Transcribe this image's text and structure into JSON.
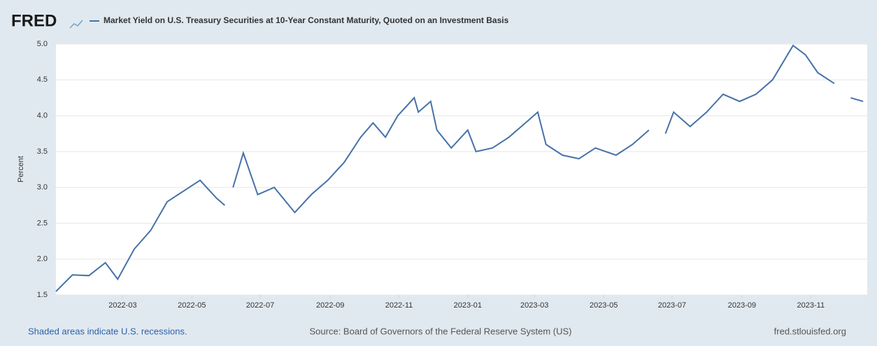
{
  "chart_data": {
    "type": "line",
    "logo": "FRED",
    "title": "Market Yield on U.S. Treasury Securities at 10-Year Constant Maturity, Quoted on an Investment Basis",
    "y_label": "Percent",
    "footer_left": "Shaded areas indicate U.S. recessions.",
    "footer_center": "Source: Board of Governors of the Federal Reserve System (US)",
    "footer_right": "fred.stlouisfed.org",
    "x": [
      2022.0,
      2022.04,
      2022.08,
      2022.12,
      2022.15,
      2022.19,
      2022.23,
      2022.27,
      2022.31,
      2022.35,
      2022.39,
      2022.41,
      2022.42,
      2022.43,
      2022.455,
      2022.49,
      2022.53,
      2022.58,
      2022.62,
      2022.66,
      2022.7,
      2022.74,
      2022.77,
      2022.8,
      2022.83,
      2022.87,
      2022.88,
      2022.91,
      2022.925,
      2022.96,
      2023.0,
      2023.02,
      2023.06,
      2023.1,
      2023.15,
      2023.17,
      2023.19,
      2023.23,
      2023.27,
      2023.31,
      2023.36,
      2023.4,
      2023.44,
      2023.47,
      2023.48,
      2023.5,
      2023.54,
      2023.58,
      2023.62,
      2023.66,
      2023.7,
      2023.74,
      2023.79,
      2023.82,
      2023.85,
      2023.89,
      2023.9,
      2023.93,
      2023.96
    ],
    "series": [
      {
        "name": "Market Yield on U.S. Treasury Securities at 10-Year Constant Maturity, Quoted on an Investment Basis",
        "color": "#4572a7",
        "values": [
          1.55,
          1.78,
          1.77,
          1.95,
          1.72,
          2.14,
          2.4,
          2.8,
          2.95,
          3.1,
          2.85,
          2.75,
          null,
          3.0,
          3.48,
          2.9,
          3.0,
          2.65,
          2.9,
          3.1,
          3.35,
          3.7,
          3.9,
          3.7,
          4.0,
          4.25,
          4.05,
          4.2,
          3.8,
          3.55,
          3.8,
          3.5,
          3.55,
          3.7,
          3.95,
          4.05,
          3.6,
          3.45,
          3.4,
          3.55,
          3.45,
          3.6,
          3.8,
          null,
          3.75,
          4.05,
          3.85,
          4.05,
          4.3,
          4.2,
          4.3,
          4.5,
          4.98,
          4.85,
          4.6,
          4.45,
          null,
          4.25,
          4.2
        ]
      }
    ],
    "xlim": [
      2022.0,
      2023.97
    ],
    "xticks": [
      {
        "value": 2022.162,
        "label": "2022-03"
      },
      {
        "value": 2022.33,
        "label": "2022-05"
      },
      {
        "value": 2022.496,
        "label": "2022-07"
      },
      {
        "value": 2022.666,
        "label": "2022-09"
      },
      {
        "value": 2022.833,
        "label": "2022-11"
      },
      {
        "value": 2023.0,
        "label": "2023-01"
      },
      {
        "value": 2023.162,
        "label": "2023-03"
      },
      {
        "value": 2023.33,
        "label": "2023-05"
      },
      {
        "value": 2023.496,
        "label": "2023-07"
      },
      {
        "value": 2023.666,
        "label": "2023-09"
      },
      {
        "value": 2023.833,
        "label": "2023-11"
      }
    ],
    "ylim": [
      1.5,
      5.0
    ],
    "yticks": [
      1.5,
      {
        "value": 2,
        "label": "2.0"
      },
      2.5,
      {
        "value": 3,
        "label": "3.0"
      },
      3.5,
      {
        "value": 4,
        "label": "4.0"
      },
      4.5,
      {
        "value": 5,
        "label": "5.0"
      }
    ],
    "grid": true
  }
}
